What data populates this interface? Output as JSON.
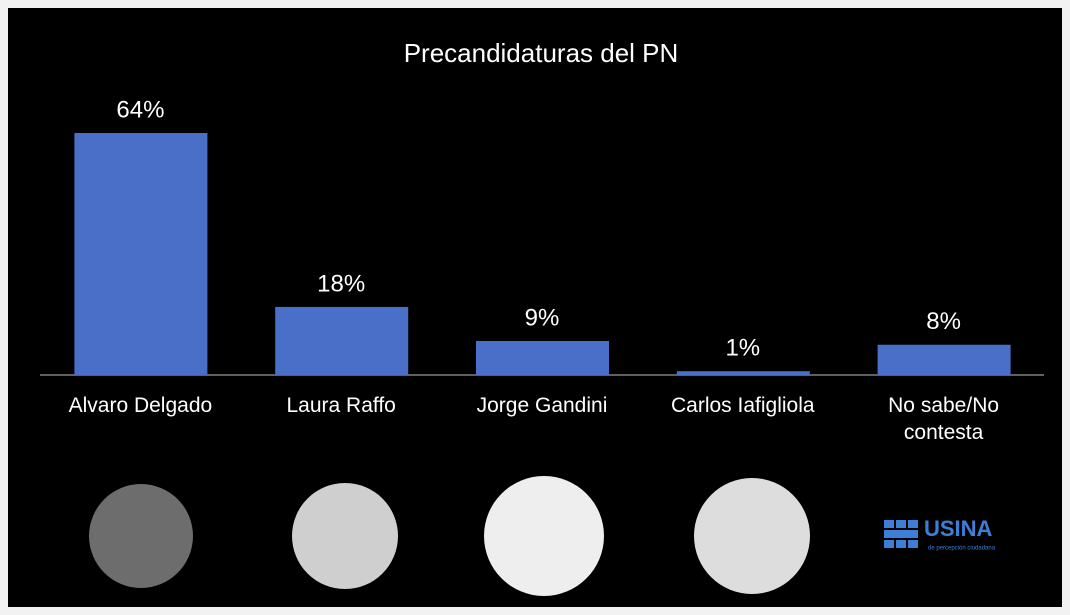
{
  "chart_data": {
    "type": "bar",
    "title": "Precandidaturas del PN",
    "categories": [
      "Alvaro Delgado",
      "Laura Raffo",
      "Jorge Gandini",
      "Carlos Iafigliola",
      "No sabe/No contesta"
    ],
    "values": [
      64,
      18,
      9,
      1,
      8
    ],
    "value_labels": [
      "64%",
      "18%",
      "9%",
      "1%",
      "8%"
    ],
    "color": "#4a6fc9"
  },
  "logo": {
    "name": "USINA",
    "tagline": "de percepción ciudadana"
  }
}
